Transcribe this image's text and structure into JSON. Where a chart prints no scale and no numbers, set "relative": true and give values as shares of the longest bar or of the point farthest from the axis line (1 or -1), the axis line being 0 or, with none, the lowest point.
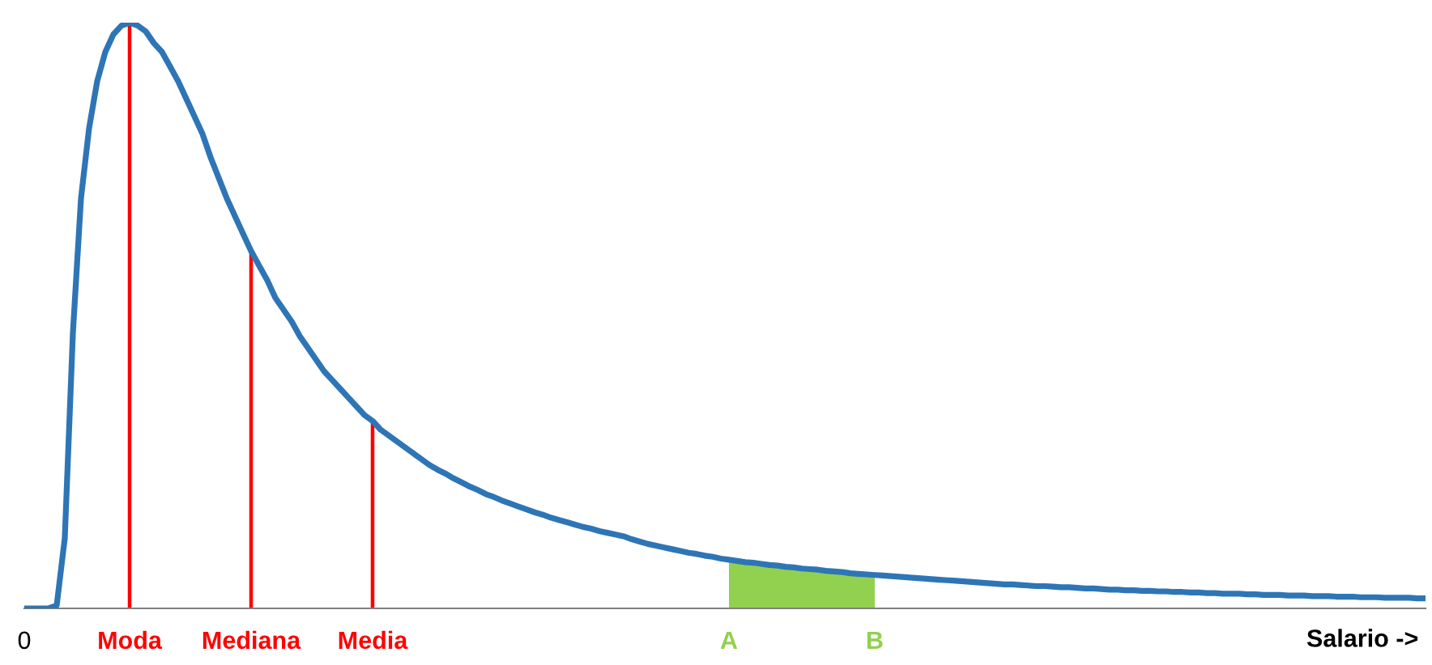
{
  "chart_data": {
    "type": "line",
    "relative": true,
    "xlabel": "Salario ->",
    "categories": [
      "0",
      null,
      null,
      null,
      null,
      null,
      null,
      null,
      null,
      null,
      null,
      null,
      null,
      "Moda",
      null,
      null,
      null,
      null,
      null,
      null,
      null,
      null,
      null,
      null,
      null,
      null,
      null,
      null,
      "Mediana",
      null,
      null,
      null,
      null,
      null,
      null,
      null,
      null,
      null,
      null,
      null,
      null,
      null,
      null,
      "Media",
      null,
      null,
      null,
      null,
      null,
      null,
      null,
      null,
      null,
      null,
      null,
      null,
      null,
      null,
      null,
      null,
      null,
      null,
      null,
      null,
      null,
      null,
      null,
      null,
      null,
      null,
      null,
      null,
      null,
      null,
      null,
      null,
      null,
      null,
      null,
      null,
      null,
      null,
      null,
      null,
      null,
      null,
      null,
      "A",
      null,
      null,
      null,
      null,
      null,
      null,
      null,
      null,
      null,
      null,
      null,
      null,
      null,
      null,
      null,
      null,
      null,
      "B",
      null,
      null,
      null,
      null,
      null,
      null,
      null,
      null,
      null,
      null,
      null,
      null,
      null,
      null,
      null,
      null,
      null,
      null,
      null,
      null,
      null,
      null,
      null,
      null,
      null,
      null,
      null,
      null,
      null,
      null,
      null,
      null,
      null,
      null,
      null,
      null,
      null,
      null,
      null,
      null,
      null,
      null,
      null,
      null,
      null,
      null,
      null,
      null,
      null,
      null,
      null,
      null,
      null,
      null,
      null,
      null,
      null,
      null,
      null,
      null,
      null,
      null,
      null,
      null,
      null,
      null,
      null,
      null
    ],
    "series": [
      {
        "type": "area",
        "color": "#92d050",
        "values": [
          null,
          null,
          null,
          null,
          null,
          null,
          null,
          null,
          null,
          null,
          null,
          null,
          null,
          null,
          null,
          null,
          null,
          null,
          null,
          null,
          null,
          null,
          null,
          null,
          null,
          null,
          null,
          null,
          null,
          null,
          null,
          null,
          null,
          null,
          null,
          null,
          null,
          null,
          null,
          null,
          null,
          null,
          null,
          null,
          null,
          null,
          null,
          null,
          null,
          null,
          null,
          null,
          null,
          null,
          null,
          null,
          null,
          null,
          null,
          null,
          null,
          null,
          null,
          null,
          null,
          null,
          null,
          null,
          null,
          null,
          null,
          null,
          null,
          null,
          null,
          null,
          null,
          null,
          null,
          null,
          null,
          null,
          null,
          null,
          null,
          null,
          null,
          0.083,
          0.081,
          0.079,
          0.078,
          0.076,
          0.074,
          0.073,
          0.071,
          0.07,
          0.068,
          0.067,
          0.066,
          0.064,
          0.063,
          0.062,
          0.06,
          0.059,
          0.058,
          0.057,
          null,
          null,
          null,
          null,
          null,
          null,
          null,
          null,
          null,
          null,
          null,
          null,
          null,
          null,
          null,
          null,
          null,
          null,
          null,
          null,
          null,
          null,
          null,
          null,
          null,
          null,
          null,
          null,
          null,
          null,
          null,
          null,
          null,
          null,
          null,
          null,
          null,
          null,
          null,
          null,
          null,
          null,
          null,
          null,
          null,
          null,
          null,
          null,
          null,
          null,
          null,
          null,
          null,
          null,
          null,
          null,
          null,
          null,
          null,
          null,
          null,
          null,
          null,
          null,
          null,
          null,
          null,
          null
        ]
      },
      {
        "type": "bar",
        "color": "#ff0000",
        "values": [
          null,
          null,
          null,
          null,
          null,
          null,
          null,
          null,
          null,
          null,
          null,
          null,
          null,
          1,
          null,
          null,
          null,
          null,
          null,
          null,
          null,
          null,
          null,
          null,
          null,
          null,
          null,
          null,
          0.61,
          null,
          null,
          null,
          null,
          null,
          null,
          null,
          null,
          null,
          null,
          null,
          null,
          null,
          null,
          0.32,
          null,
          null,
          null,
          null,
          null,
          null,
          null,
          null,
          null,
          null,
          null,
          null,
          null,
          null,
          null,
          null,
          null,
          null,
          null,
          null,
          null,
          null,
          null,
          null,
          null,
          null,
          null,
          null,
          null,
          null,
          null,
          null,
          null,
          null,
          null,
          null,
          null,
          null,
          null,
          null,
          null,
          null,
          null,
          null,
          null,
          null,
          null,
          null,
          null,
          null,
          null,
          null,
          null,
          null,
          null,
          null,
          null,
          null,
          null,
          null,
          null,
          null,
          null,
          null,
          null,
          null,
          null,
          null,
          null,
          null,
          null,
          null,
          null,
          null,
          null,
          null,
          null,
          null,
          null,
          null,
          null,
          null,
          null,
          null,
          null,
          null,
          null,
          null,
          null,
          null,
          null,
          null,
          null,
          null,
          null,
          null,
          null,
          null,
          null,
          null,
          null,
          null,
          null,
          null,
          null,
          null,
          null,
          null,
          null,
          null,
          null,
          null,
          null,
          null,
          null,
          null,
          null,
          null,
          null,
          null,
          null,
          null,
          null,
          null,
          null,
          null,
          null,
          null,
          null,
          null
        ]
      },
      {
        "color": "#2e75b6",
        "values": [
          0,
          0,
          0,
          0,
          0.005,
          0.12,
          0.47,
          0.7,
          0.82,
          0.9,
          0.95,
          0.98,
          0.995,
          1,
          0.995,
          0.985,
          0.965,
          0.95,
          0.925,
          0.9,
          0.87,
          0.84,
          0.81,
          0.77,
          0.735,
          0.7,
          0.67,
          0.64,
          0.61,
          0.585,
          0.56,
          0.53,
          0.51,
          0.49,
          0.465,
          0.445,
          0.425,
          0.405,
          0.39,
          0.375,
          0.36,
          0.345,
          0.33,
          0.32,
          0.305,
          0.295,
          0.285,
          0.275,
          0.265,
          0.255,
          0.245,
          0.237,
          0.23,
          0.222,
          0.215,
          0.208,
          0.202,
          0.195,
          0.19,
          0.184,
          0.179,
          0.174,
          0.169,
          0.164,
          0.16,
          0.155,
          0.151,
          0.147,
          0.143,
          0.139,
          0.136,
          0.132,
          0.129,
          0.126,
          0.123,
          0.118,
          0.114,
          0.11,
          0.107,
          0.104,
          0.101,
          0.098,
          0.095,
          0.093,
          0.09,
          0.088,
          0.085,
          0.083,
          0.081,
          0.079,
          0.078,
          0.076,
          0.074,
          0.073,
          0.071,
          0.07,
          0.068,
          0.067,
          0.066,
          0.064,
          0.063,
          0.062,
          0.06,
          0.059,
          0.058,
          0.057,
          0.056,
          0.055,
          0.054,
          0.053,
          0.052,
          0.051,
          0.05,
          0.049,
          0.048,
          0.047,
          0.046,
          0.045,
          0.044,
          0.043,
          0.042,
          0.041,
          0.041,
          0.04,
          0.039,
          0.038,
          0.038,
          0.037,
          0.036,
          0.036,
          0.035,
          0.034,
          0.034,
          0.033,
          0.032,
          0.032,
          0.031,
          0.031,
          0.03,
          0.03,
          0.029,
          0.029,
          0.028,
          0.028,
          0.027,
          0.027,
          0.026,
          0.026,
          0.025,
          0.025,
          0.025,
          0.024,
          0.024,
          0.023,
          0.023,
          0.023,
          0.022,
          0.022,
          0.022,
          0.021,
          0.021,
          0.021,
          0.02,
          0.02,
          0.02,
          0.019,
          0.019,
          0.019,
          0.018,
          0.018,
          0.018,
          0.018,
          0.017,
          0.017
        ]
      }
    ]
  }
}
